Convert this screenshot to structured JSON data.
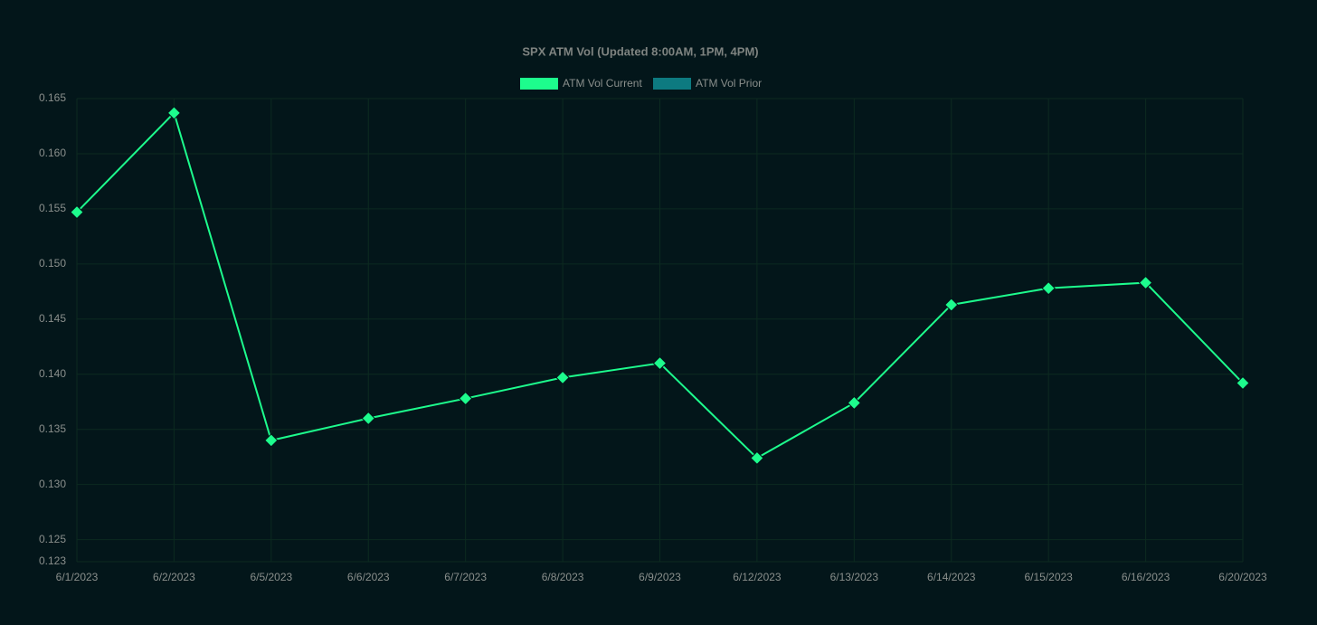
{
  "chart_data": {
    "type": "line",
    "title": "SPX ATM Vol (Updated 8:00AM, 1PM, 4PM)",
    "categories": [
      "6/1/2023",
      "6/2/2023",
      "6/5/2023",
      "6/6/2023",
      "6/7/2023",
      "6/8/2023",
      "6/9/2023",
      "6/12/2023",
      "6/13/2023",
      "6/14/2023",
      "6/15/2023",
      "6/16/2023",
      "6/20/2023"
    ],
    "series": [
      {
        "name": "ATM Vol Current",
        "color": "#1dfc8d",
        "values": [
          0.1547,
          0.1637,
          0.134,
          0.136,
          0.1378,
          0.1397,
          0.141,
          0.1324,
          0.1374,
          0.1463,
          0.1478,
          0.1483,
          0.1392
        ]
      },
      {
        "name": "ATM Vol Prior",
        "color": "#0d7a80",
        "values": [
          null,
          null,
          null,
          null,
          null,
          null,
          null,
          null,
          null,
          null,
          null,
          null,
          null
        ]
      }
    ],
    "ylim": [
      0.123,
      0.165
    ],
    "yticks": [
      0.123,
      0.125,
      {
        "value": 0.13,
        "label": "0.130"
      },
      0.135,
      {
        "value": 0.14,
        "label": "0.140"
      },
      0.145,
      {
        "value": 0.15,
        "label": "0.150"
      },
      0.155,
      {
        "value": 0.16,
        "label": "0.160"
      },
      0.165
    ],
    "grid": true
  }
}
